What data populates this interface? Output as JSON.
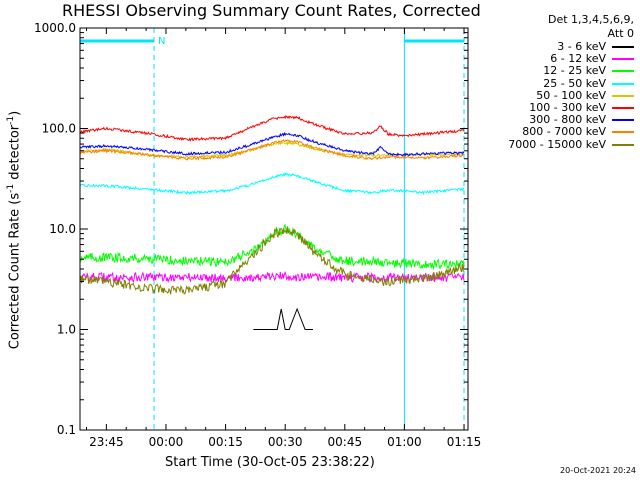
{
  "chart_data": {
    "type": "line",
    "title": "RHESSI Observing Summary Count Rates, Corrected",
    "xlabel": "Start Time (30-Oct-05 23:38:22)",
    "ylabel": "Corrected Count Rate (s^-1 detector^-1)",
    "ylabel_prefix": "Corrected Count Rate (s",
    "ylabel_sup1": "-1",
    "ylabel_mid": " detector",
    "ylabel_sup2": "-1",
    "ylabel_suffix": ")",
    "y_scale": "log",
    "ylim": [
      0.1,
      1000
    ],
    "xlim": [
      "23:38:22",
      "01:16:00"
    ],
    "x_ticks": [
      "23:45",
      "00:00",
      "00:15",
      "00:30",
      "00:45",
      "01:00",
      "01:15"
    ],
    "y_ticks": [
      "0.1",
      "1.0",
      "10.0",
      "100.0",
      "1000.0"
    ],
    "detector_info": [
      "Det 1,3,4,5,6,9,",
      "Att 0"
    ],
    "legend_placement": "top-right",
    "grid": false,
    "night_intervals": [
      [
        "23:38:22",
        "23:57:00"
      ],
      [
        "01:00:00",
        "01:15:00"
      ]
    ],
    "night_label": "N",
    "series": [
      {
        "name": "3 - 6 keV",
        "color": "#000000",
        "x": [
          "00:22",
          "00:25",
          "00:28",
          "00:29",
          "00:30",
          "00:31",
          "00:33",
          "00:35",
          "00:37"
        ],
        "values": [
          1.0,
          1.0,
          1.0,
          1.6,
          1.0,
          1.0,
          1.6,
          1.0,
          1.0
        ]
      },
      {
        "name": "6 - 12 keV",
        "color": "#ff00ff",
        "x": [
          "23:38",
          "23:45",
          "23:55",
          "00:05",
          "00:15",
          "00:25",
          "00:30",
          "00:35",
          "00:45",
          "00:55",
          "01:05",
          "01:15"
        ],
        "values": [
          3.3,
          3.3,
          3.3,
          3.3,
          3.3,
          3.3,
          3.4,
          3.3,
          3.3,
          3.3,
          3.3,
          3.3
        ]
      },
      {
        "name": "12 - 25 keV",
        "color": "#00ff00",
        "x": [
          "23:38",
          "23:45",
          "23:55",
          "00:05",
          "00:15",
          "00:22",
          "00:27",
          "00:30",
          "00:33",
          "00:38",
          "00:45",
          "00:55",
          "01:05",
          "01:15"
        ],
        "values": [
          5.2,
          5.2,
          5.1,
          4.8,
          4.7,
          6.0,
          9.0,
          10.0,
          9.0,
          6.0,
          4.8,
          4.7,
          4.5,
          4.4
        ]
      },
      {
        "name": "25 - 50 keV",
        "color": "#00ffff",
        "x": [
          "23:38",
          "23:45",
          "23:55",
          "00:05",
          "00:15",
          "00:22",
          "00:27",
          "00:30",
          "00:33",
          "00:38",
          "00:45",
          "00:52",
          "00:55",
          "01:00",
          "01:05",
          "01:10",
          "01:15"
        ],
        "values": [
          27,
          27,
          25,
          23,
          24,
          28,
          33,
          35,
          34,
          29,
          24,
          23,
          24,
          24,
          23,
          24,
          25
        ]
      },
      {
        "name": "50 - 100 keV",
        "color": "#cccc00",
        "x": [
          "23:38",
          "23:45",
          "23:55",
          "00:05",
          "00:15",
          "00:22",
          "00:27",
          "00:30",
          "00:33",
          "00:38",
          "00:45",
          "00:55",
          "01:05",
          "01:15"
        ],
        "values": [
          60,
          62,
          55,
          52,
          54,
          62,
          70,
          72,
          70,
          62,
          55,
          54,
          55,
          55
        ]
      },
      {
        "name": "100 - 300 keV",
        "color": "#ff0000",
        "x": [
          "23:38",
          "23:45",
          "23:55",
          "00:05",
          "00:15",
          "00:22",
          "00:27",
          "00:30",
          "00:33",
          "00:38",
          "00:45",
          "00:52",
          "00:54",
          "00:56",
          "01:00",
          "01:05",
          "01:10",
          "01:15"
        ],
        "values": [
          92,
          100,
          90,
          78,
          80,
          105,
          125,
          130,
          128,
          108,
          88,
          90,
          105,
          88,
          84,
          88,
          92,
          95
        ]
      },
      {
        "name": "300 - 800 keV",
        "color": "#0000ff",
        "x": [
          "23:38",
          "23:45",
          "23:55",
          "00:05",
          "00:15",
          "00:22",
          "00:27",
          "00:30",
          "00:33",
          "00:38",
          "00:45",
          "00:52",
          "00:54",
          "00:56",
          "01:00",
          "01:05",
          "01:10",
          "01:15"
        ],
        "values": [
          65,
          67,
          62,
          56,
          58,
          70,
          82,
          88,
          85,
          72,
          60,
          56,
          65,
          56,
          55,
          56,
          57,
          57
        ]
      },
      {
        "name": "800 - 7000 keV",
        "color": "#ff8000",
        "x": [
          "23:38",
          "23:45",
          "23:55",
          "00:05",
          "00:15",
          "00:22",
          "00:27",
          "00:30",
          "00:33",
          "00:38",
          "00:45",
          "00:52",
          "00:55",
          "01:00",
          "01:05",
          "01:10",
          "01:15"
        ],
        "values": [
          58,
          60,
          55,
          50,
          52,
          62,
          72,
          76,
          74,
          63,
          54,
          50,
          52,
          52,
          51,
          52,
          54
        ]
      },
      {
        "name": "7000 - 15000 keV",
        "color": "#808000",
        "x": [
          "23:38",
          "23:45",
          "23:55",
          "00:05",
          "00:15",
          "00:22",
          "00:27",
          "00:30",
          "00:33",
          "00:38",
          "00:45",
          "00:55",
          "01:05",
          "01:15"
        ],
        "values": [
          3.2,
          3.0,
          2.6,
          2.4,
          2.9,
          5.5,
          8.8,
          9.8,
          8.8,
          5.5,
          3.5,
          3.0,
          3.2,
          4.2
        ]
      }
    ]
  },
  "footer_timestamp": "20-Oct-2021 20:24"
}
